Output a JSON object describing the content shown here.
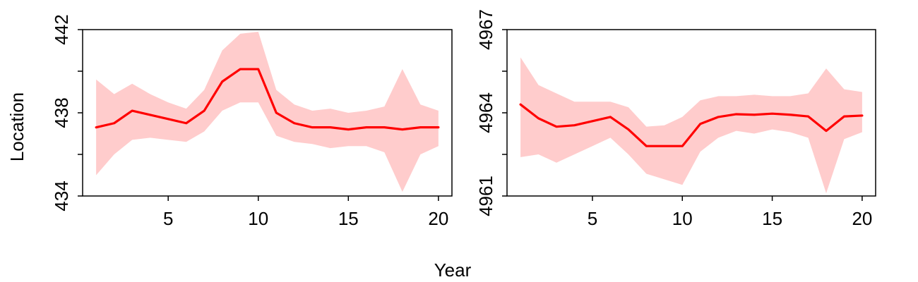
{
  "figure": {
    "xlabel": "Year",
    "ylabel": "Location",
    "line_color": "#ff0000",
    "band_color": "#ffcccc"
  },
  "chart_data": [
    {
      "type": "line",
      "x": [
        1,
        2,
        3,
        4,
        5,
        6,
        7,
        8,
        9,
        10,
        11,
        12,
        13,
        14,
        15,
        16,
        17,
        18,
        19,
        20
      ],
      "series": [
        {
          "values": [
            437.3,
            437.5,
            438.1,
            437.9,
            437.7,
            437.5,
            438.1,
            439.5,
            440.1,
            440.1,
            438.0,
            437.5,
            437.3,
            437.3,
            437.2,
            437.3,
            437.3,
            437.2,
            437.3,
            437.3
          ],
          "lower": [
            435.0,
            436.0,
            436.7,
            436.8,
            436.7,
            436.6,
            437.1,
            438.1,
            438.5,
            438.5,
            436.9,
            436.6,
            436.5,
            436.3,
            436.4,
            436.4,
            436.1,
            434.2,
            436.0,
            436.4
          ],
          "upper": [
            439.6,
            438.9,
            439.4,
            438.9,
            438.5,
            438.2,
            439.1,
            441.0,
            441.8,
            441.9,
            439.1,
            438.4,
            438.1,
            438.2,
            438.0,
            438.1,
            438.3,
            440.1,
            438.4,
            438.1
          ]
        }
      ],
      "xlim": [
        0.25,
        20.75
      ],
      "ylim": [
        434,
        442
      ],
      "xticks": [
        5,
        10,
        15,
        20
      ],
      "yticks": [
        434,
        438,
        442
      ],
      "yticks_minor": [
        436,
        440
      ],
      "grid": false
    },
    {
      "type": "line",
      "x": [
        1,
        2,
        3,
        4,
        5,
        6,
        7,
        8,
        9,
        10,
        11,
        12,
        13,
        14,
        15,
        16,
        17,
        18,
        19,
        20
      ],
      "series": [
        {
          "values": [
            4964.3,
            4963.8,
            4963.5,
            4963.55,
            4963.7,
            4963.85,
            4963.4,
            4962.8,
            4962.8,
            4962.8,
            4963.6,
            4963.85,
            4963.95,
            4963.93,
            4963.97,
            4963.93,
            4963.87,
            4963.35,
            4963.87,
            4963.9
          ],
          "lower": [
            4962.4,
            4962.5,
            4962.2,
            4962.5,
            4962.8,
            4963.1,
            4962.5,
            4961.8,
            4961.6,
            4961.4,
            4962.6,
            4963.1,
            4963.35,
            4963.25,
            4963.4,
            4963.3,
            4963.1,
            4961.1,
            4963.05,
            4963.3
          ],
          "upper": [
            4966.0,
            4965.0,
            4964.7,
            4964.4,
            4964.4,
            4964.4,
            4964.2,
            4963.5,
            4963.55,
            4963.85,
            4964.45,
            4964.6,
            4964.6,
            4964.65,
            4964.6,
            4964.6,
            4964.7,
            4965.6,
            4964.85,
            4964.75
          ]
        }
      ],
      "xlim": [
        0.25,
        20.75
      ],
      "ylim": [
        4961,
        4967
      ],
      "xticks": [
        5,
        10,
        15,
        20
      ],
      "yticks": [
        4961,
        4964,
        4967
      ],
      "yticks_minor": [
        4962.5,
        4965.5
      ],
      "grid": false
    }
  ]
}
